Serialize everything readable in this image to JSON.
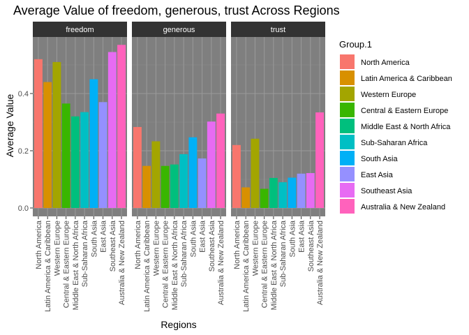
{
  "chart_data": {
    "type": "bar",
    "title": "Average Value of freedom, generous, trust Across Regions",
    "xlabel": "Regions",
    "ylabel": "Average Value",
    "legend_title": "Group.1",
    "legend_position": "right",
    "grid": true,
    "ylim": [
      0,
      0.6
    ],
    "yticks": [
      "0.0",
      "0.2",
      "0.4"
    ],
    "categories": [
      "North America",
      "Latin America & Caribbean",
      "Western Europe",
      "Central & Eastern Europe",
      "Middle East & North Africa",
      "Sub-Saharan Africa",
      "South Asia",
      "East Asia",
      "Southeast Asia",
      "Australia & New Zealand"
    ],
    "colors": [
      "#F8766D",
      "#D89000",
      "#A3A500",
      "#39B600",
      "#00BF7D",
      "#00BFC4",
      "#00B0F6",
      "#9590FF",
      "#E76BF3",
      "#FF62BC"
    ],
    "panels": [
      {
        "name": "freedom",
        "values": [
          0.52,
          0.44,
          0.51,
          0.365,
          0.32,
          0.335,
          0.45,
          0.37,
          0.545,
          0.57
        ]
      },
      {
        "name": "generous",
        "values": [
          0.283,
          0.147,
          0.233,
          0.147,
          0.152,
          0.188,
          0.247,
          0.173,
          0.302,
          0.33
        ]
      },
      {
        "name": "trust",
        "values": [
          0.22,
          0.072,
          0.242,
          0.067,
          0.105,
          0.09,
          0.106,
          0.12,
          0.122,
          0.334
        ]
      }
    ]
  }
}
